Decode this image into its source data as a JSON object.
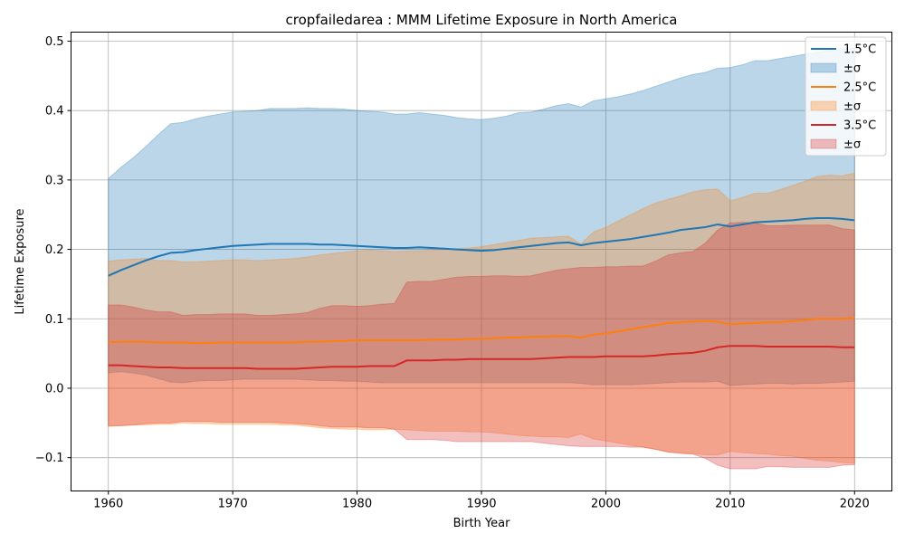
{
  "chart_data": {
    "type": "area",
    "title": "cropfailedarea : MMM Lifetime Exposure in North America",
    "xlabel": "Birth Year",
    "ylabel": "Lifetime Exposure",
    "xlim": [
      1957,
      2023
    ],
    "ylim": [
      -0.148,
      0.513
    ],
    "xticks": [
      1960,
      1970,
      1980,
      1990,
      2000,
      2010,
      2020
    ],
    "yticks": [
      -0.1,
      0.0,
      0.1,
      0.2,
      0.3,
      0.4,
      0.5
    ],
    "ytick_labels": [
      "−0.1",
      "0.0",
      "0.1",
      "0.2",
      "0.3",
      "0.4",
      "0.5"
    ],
    "grid": true,
    "legend_position": "top-right",
    "x": [
      1960,
      1961,
      1962,
      1963,
      1964,
      1965,
      1966,
      1967,
      1968,
      1969,
      1970,
      1971,
      1972,
      1973,
      1974,
      1975,
      1976,
      1977,
      1978,
      1979,
      1980,
      1981,
      1982,
      1983,
      1984,
      1985,
      1986,
      1987,
      1988,
      1989,
      1990,
      1991,
      1992,
      1993,
      1994,
      1995,
      1996,
      1997,
      1998,
      1999,
      2000,
      2001,
      2002,
      2003,
      2004,
      2005,
      2006,
      2007,
      2008,
      2009,
      2010,
      2011,
      2012,
      2013,
      2014,
      2015,
      2016,
      2017,
      2018,
      2019,
      2020
    ],
    "series": [
      {
        "name": "1.5°C",
        "band_name": "±σ",
        "color": "#1f77b4",
        "values": [
          0.162,
          0.17,
          0.177,
          0.184,
          0.19,
          0.195,
          0.196,
          0.199,
          0.201,
          0.203,
          0.205,
          0.206,
          0.207,
          0.208,
          0.208,
          0.208,
          0.208,
          0.207,
          0.207,
          0.206,
          0.205,
          0.204,
          0.203,
          0.202,
          0.202,
          0.203,
          0.202,
          0.201,
          0.2,
          0.199,
          0.198,
          0.199,
          0.201,
          0.203,
          0.205,
          0.207,
          0.209,
          0.21,
          0.206,
          0.209,
          0.211,
          0.213,
          0.215,
          0.218,
          0.221,
          0.224,
          0.228,
          0.23,
          0.232,
          0.236,
          0.233,
          0.236,
          0.239,
          0.24,
          0.241,
          0.242,
          0.244,
          0.245,
          0.245,
          0.244,
          0.242
        ],
        "upper": [
          0.302,
          0.318,
          0.332,
          0.348,
          0.365,
          0.381,
          0.383,
          0.388,
          0.392,
          0.395,
          0.398,
          0.399,
          0.4,
          0.403,
          0.403,
          0.403,
          0.404,
          0.403,
          0.403,
          0.402,
          0.4,
          0.399,
          0.398,
          0.395,
          0.395,
          0.397,
          0.395,
          0.393,
          0.39,
          0.388,
          0.387,
          0.389,
          0.392,
          0.397,
          0.398,
          0.402,
          0.407,
          0.41,
          0.405,
          0.414,
          0.417,
          0.42,
          0.424,
          0.429,
          0.435,
          0.441,
          0.447,
          0.452,
          0.455,
          0.461,
          0.462,
          0.466,
          0.472,
          0.472,
          0.475,
          0.478,
          0.481,
          0.484,
          0.486,
          0.488,
          0.49
        ],
        "lower": [
          0.022,
          0.024,
          0.022,
          0.019,
          0.014,
          0.009,
          0.008,
          0.01,
          0.011,
          0.011,
          0.012,
          0.013,
          0.013,
          0.013,
          0.013,
          0.013,
          0.012,
          0.011,
          0.011,
          0.01,
          0.01,
          0.009,
          0.008,
          0.008,
          0.008,
          0.008,
          0.008,
          0.008,
          0.008,
          0.008,
          0.008,
          0.008,
          0.008,
          0.008,
          0.008,
          0.008,
          0.008,
          0.008,
          0.007,
          0.005,
          0.005,
          0.005,
          0.005,
          0.006,
          0.007,
          0.008,
          0.009,
          0.009,
          0.009,
          0.01,
          0.004,
          0.005,
          0.006,
          0.007,
          0.007,
          0.006,
          0.007,
          0.007,
          0.008,
          0.009,
          0.01
        ]
      },
      {
        "name": "2.5°C",
        "band_name": "±σ",
        "color": "#ff7f0e",
        "values": [
          0.066,
          0.067,
          0.067,
          0.067,
          0.066,
          0.066,
          0.066,
          0.065,
          0.065,
          0.066,
          0.066,
          0.066,
          0.066,
          0.066,
          0.066,
          0.066,
          0.067,
          0.067,
          0.068,
          0.068,
          0.069,
          0.069,
          0.069,
          0.069,
          0.069,
          0.069,
          0.07,
          0.07,
          0.07,
          0.071,
          0.071,
          0.072,
          0.073,
          0.073,
          0.074,
          0.074,
          0.075,
          0.075,
          0.073,
          0.077,
          0.079,
          0.082,
          0.085,
          0.088,
          0.091,
          0.094,
          0.095,
          0.096,
          0.097,
          0.096,
          0.092,
          0.093,
          0.094,
          0.095,
          0.095,
          0.097,
          0.098,
          0.1,
          0.1,
          0.1,
          0.101
        ],
        "upper": [
          0.183,
          0.185,
          0.186,
          0.187,
          0.184,
          0.184,
          0.182,
          0.182,
          0.183,
          0.184,
          0.185,
          0.185,
          0.184,
          0.185,
          0.186,
          0.187,
          0.189,
          0.192,
          0.194,
          0.196,
          0.198,
          0.199,
          0.198,
          0.197,
          0.198,
          0.198,
          0.199,
          0.2,
          0.201,
          0.202,
          0.204,
          0.207,
          0.21,
          0.213,
          0.216,
          0.217,
          0.218,
          0.219,
          0.208,
          0.225,
          0.232,
          0.241,
          0.25,
          0.259,
          0.267,
          0.272,
          0.277,
          0.283,
          0.286,
          0.287,
          0.27,
          0.275,
          0.281,
          0.281,
          0.286,
          0.292,
          0.298,
          0.305,
          0.307,
          0.306,
          0.31
        ],
        "lower": [
          -0.055,
          -0.054,
          -0.053,
          -0.053,
          -0.052,
          -0.052,
          -0.05,
          -0.051,
          -0.051,
          -0.052,
          -0.052,
          -0.052,
          -0.052,
          -0.052,
          -0.053,
          -0.053,
          -0.055,
          -0.057,
          -0.058,
          -0.059,
          -0.059,
          -0.06,
          -0.06,
          -0.059,
          -0.06,
          -0.061,
          -0.062,
          -0.062,
          -0.062,
          -0.063,
          -0.063,
          -0.064,
          -0.066,
          -0.068,
          -0.069,
          -0.07,
          -0.07,
          -0.071,
          -0.066,
          -0.073,
          -0.076,
          -0.079,
          -0.082,
          -0.085,
          -0.088,
          -0.092,
          -0.093,
          -0.094,
          -0.096,
          -0.096,
          -0.091,
          -0.093,
          -0.094,
          -0.095,
          -0.097,
          -0.098,
          -0.101,
          -0.104,
          -0.105,
          -0.107,
          -0.108
        ]
      },
      {
        "name": "3.5°C",
        "band_name": "±σ",
        "color": "#d62728",
        "values": [
          0.033,
          0.033,
          0.032,
          0.031,
          0.03,
          0.03,
          0.029,
          0.029,
          0.029,
          0.029,
          0.029,
          0.029,
          0.028,
          0.028,
          0.028,
          0.028,
          0.029,
          0.03,
          0.031,
          0.031,
          0.031,
          0.032,
          0.032,
          0.032,
          0.04,
          0.04,
          0.04,
          0.041,
          0.041,
          0.042,
          0.042,
          0.042,
          0.042,
          0.042,
          0.042,
          0.043,
          0.044,
          0.045,
          0.045,
          0.045,
          0.046,
          0.046,
          0.046,
          0.046,
          0.047,
          0.049,
          0.05,
          0.051,
          0.054,
          0.059,
          0.061,
          0.061,
          0.061,
          0.06,
          0.06,
          0.06,
          0.06,
          0.06,
          0.06,
          0.059,
          0.059
        ],
        "upper": [
          0.12,
          0.12,
          0.117,
          0.113,
          0.11,
          0.11,
          0.105,
          0.106,
          0.106,
          0.107,
          0.107,
          0.107,
          0.105,
          0.105,
          0.106,
          0.107,
          0.109,
          0.115,
          0.119,
          0.119,
          0.118,
          0.119,
          0.121,
          0.122,
          0.153,
          0.154,
          0.154,
          0.157,
          0.16,
          0.161,
          0.161,
          0.162,
          0.162,
          0.161,
          0.162,
          0.166,
          0.17,
          0.172,
          0.174,
          0.174,
          0.175,
          0.175,
          0.176,
          0.176,
          0.183,
          0.192,
          0.195,
          0.197,
          0.209,
          0.228,
          0.238,
          0.239,
          0.238,
          0.234,
          0.234,
          0.235,
          0.235,
          0.235,
          0.235,
          0.23,
          0.228
        ],
        "lower": [
          -0.054,
          -0.054,
          -0.053,
          -0.051,
          -0.05,
          -0.05,
          -0.048,
          -0.048,
          -0.048,
          -0.049,
          -0.049,
          -0.049,
          -0.049,
          -0.049,
          -0.05,
          -0.051,
          -0.052,
          -0.054,
          -0.056,
          -0.056,
          -0.056,
          -0.057,
          -0.057,
          -0.059,
          -0.074,
          -0.074,
          -0.074,
          -0.075,
          -0.077,
          -0.077,
          -0.077,
          -0.077,
          -0.077,
          -0.077,
          -0.077,
          -0.079,
          -0.081,
          -0.083,
          -0.084,
          -0.084,
          -0.084,
          -0.084,
          -0.085,
          -0.085,
          -0.088,
          -0.092,
          -0.094,
          -0.095,
          -0.101,
          -0.111,
          -0.116,
          -0.116,
          -0.116,
          -0.113,
          -0.113,
          -0.114,
          -0.114,
          -0.114,
          -0.114,
          -0.111,
          -0.11
        ]
      }
    ]
  }
}
